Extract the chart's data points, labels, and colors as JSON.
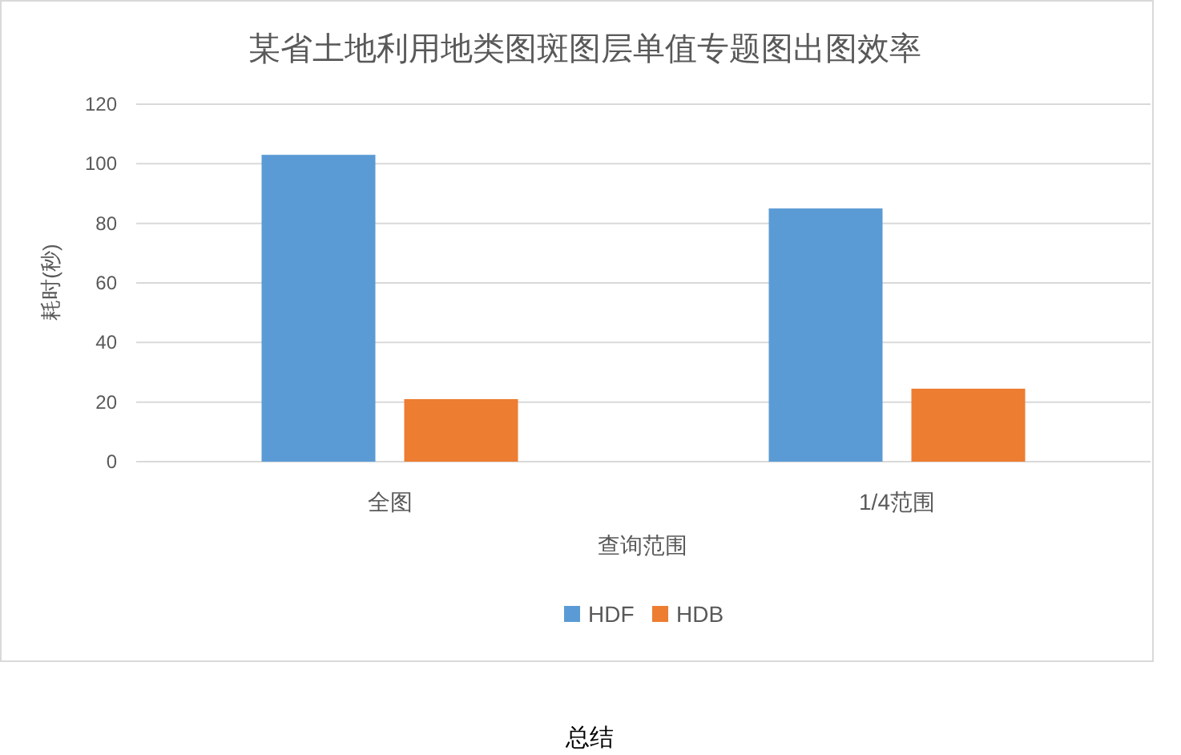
{
  "chart_data": {
    "type": "bar",
    "title": "某省土地利用地类图斑图层单值专题图出图效率",
    "xlabel": "查询范围",
    "ylabel": "耗时(秒)",
    "categories": [
      "全图",
      "1/4范围"
    ],
    "series": [
      {
        "name": "HDF",
        "color": "#5b9bd5",
        "values": [
          103,
          85
        ]
      },
      {
        "name": "HDB",
        "color": "#ed7d31",
        "values": [
          21,
          24.5
        ]
      }
    ],
    "ylim": [
      0,
      120
    ],
    "yticks": [
      0,
      20,
      40,
      60,
      80,
      100,
      120
    ],
    "grid": "y",
    "legend": "bottom",
    "annotations": [
      "总结"
    ]
  }
}
